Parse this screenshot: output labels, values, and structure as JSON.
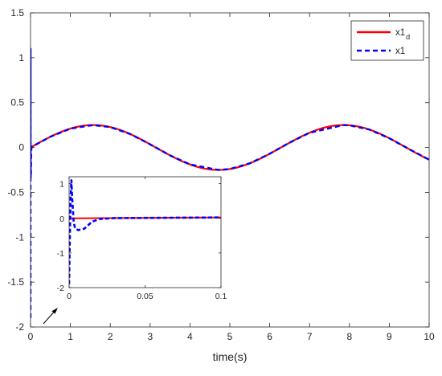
{
  "chart_data": [
    {
      "type": "line",
      "title": "",
      "xlabel": "time(s)",
      "ylabel": "",
      "xlim": [
        0,
        10
      ],
      "ylim": [
        -2,
        1.5
      ],
      "xticks": [
        0,
        1,
        2,
        3,
        4,
        5,
        6,
        7,
        8,
        9,
        10
      ],
      "yticks": [
        -2,
        -1.5,
        -1,
        -0.5,
        0,
        0.5,
        1,
        1.5
      ],
      "xtick_labels": [
        "0",
        "1",
        "2",
        "3",
        "4",
        "5",
        "6",
        "7",
        "8",
        "9",
        "10"
      ],
      "ytick_labels": [
        "-2",
        "-1.5",
        "-1",
        "-0.5",
        "0",
        "0.5",
        "1",
        "1.5"
      ],
      "grid": false,
      "legend_placement": "top-right",
      "series": [
        {
          "name": "x1",
          "name_subscript": "d",
          "color": "#ff0000",
          "style": "solid",
          "function": "0.25*sin(t)",
          "x": [
            0,
            0.5,
            1,
            1.5708,
            2,
            2.5,
            3,
            3.5,
            4,
            4.7124,
            5,
            5.5,
            6,
            6.5,
            7,
            7.854,
            8,
            8.5,
            9,
            9.5,
            10
          ],
          "y": [
            0,
            0.12,
            0.21,
            0.25,
            0.227,
            0.15,
            0.035,
            -0.088,
            -0.189,
            -0.25,
            -0.24,
            -0.177,
            -0.07,
            0.054,
            0.164,
            0.25,
            0.247,
            0.2,
            0.103,
            -0.019,
            -0.136
          ]
        },
        {
          "name": "x1",
          "color": "#0000ff",
          "style": "dashed",
          "x": [
            0,
            0.0005,
            0.001,
            0.0015,
            0.002,
            0.003,
            0.004,
            0.006,
            0.01,
            0.015,
            0.02,
            0.03,
            0.5,
            1,
            1.5708,
            2,
            2.5,
            3,
            3.5,
            4,
            4.7124,
            5,
            5.5,
            6,
            6.5,
            7,
            7.854,
            8,
            8.5,
            9,
            9.5,
            10
          ],
          "y": [
            -1.9,
            -0.5,
            0.6,
            1.1,
            0.6,
            -0.1,
            -0.3,
            -0.34,
            -0.3,
            -0.1,
            -0.02,
            0.007,
            0.12,
            0.21,
            0.25,
            0.227,
            0.15,
            0.035,
            -0.088,
            -0.189,
            -0.25,
            -0.24,
            -0.177,
            -0.07,
            0.054,
            0.164,
            0.25,
            0.247,
            0.2,
            0.103,
            -0.019,
            -0.136
          ]
        }
      ]
    },
    {
      "type": "line",
      "title": "",
      "xlabel": "",
      "ylabel": "",
      "xlim": [
        0,
        0.1
      ],
      "ylim": [
        -2,
        1.2
      ],
      "xticks": [
        0,
        0.05,
        0.1
      ],
      "yticks": [
        -2,
        -1,
        0,
        1
      ],
      "xtick_labels": [
        "0",
        "0.05",
        "0.1"
      ],
      "ytick_labels": [
        "-2",
        "-1",
        "0",
        "1"
      ],
      "grid": false,
      "series": [
        {
          "name": "x1",
          "name_subscript": "d",
          "color": "#ff0000",
          "style": "solid",
          "x": [
            0,
            0.025,
            0.05,
            0.075,
            0.1
          ],
          "y": [
            0,
            0.006,
            0.012,
            0.019,
            0.025
          ]
        },
        {
          "name": "x1",
          "color": "#0000ff",
          "style": "dashed",
          "x": [
            0,
            0.0005,
            0.001,
            0.0015,
            0.002,
            0.003,
            0.004,
            0.006,
            0.01,
            0.015,
            0.02,
            0.03,
            0.05,
            0.075,
            0.1
          ],
          "y": [
            -1.9,
            -0.5,
            0.6,
            1.1,
            0.6,
            -0.1,
            -0.3,
            -0.34,
            -0.3,
            -0.1,
            -0.02,
            0.007,
            0.012,
            0.019,
            0.025
          ]
        }
      ]
    }
  ]
}
